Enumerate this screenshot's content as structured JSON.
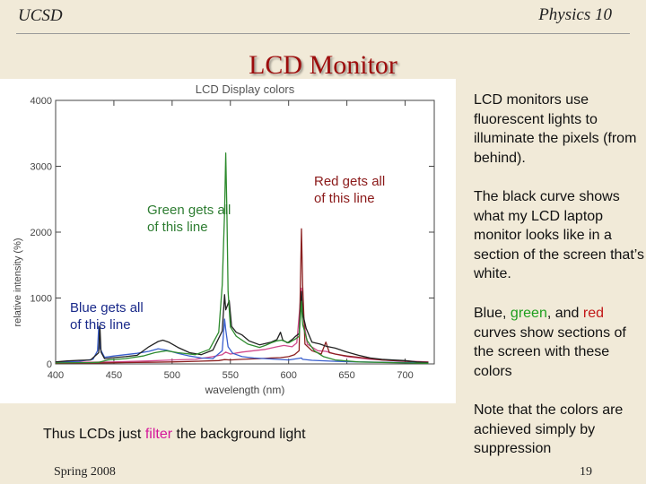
{
  "slide": {
    "header_left": "UCSD",
    "header_right": "Physics 10",
    "title": "LCD Monitor",
    "footer_left": "Spring 2008",
    "page_number": "19"
  },
  "annotations": {
    "green": [
      "Green gets all",
      "of this line"
    ],
    "red": [
      "Red gets all",
      "of this line"
    ],
    "blue": [
      "Blue gets all",
      "of this line"
    ]
  },
  "bullets": {
    "p1": "LCD monitors use fluorescent lights to illuminate the pixels (from behind).",
    "p2": "The black curve shows what my LCD laptop monitor looks like in a section of the screen that’s white.",
    "p3": {
      "w1": "Blue, ",
      "w2": "green",
      "w3": ", and ",
      "w4": "red",
      "w5": " curves show sections of the screen with these colors"
    },
    "p4": "Note that the colors are achieved simply by suppression"
  },
  "bottom": {
    "before": "Thus LCDs just ",
    "highlight": "filter",
    "after": " the background light"
  },
  "chart_data": {
    "type": "line",
    "title": "LCD Display colors",
    "xlabel": "wavelength (nm)",
    "ylabel": "relative intensity (%)",
    "xlim": [
      400,
      725
    ],
    "ylim": [
      0,
      4000
    ],
    "xticks": [
      400,
      450,
      500,
      550,
      600,
      650,
      700
    ],
    "yticks": [
      0,
      1000,
      2000,
      3000,
      4000
    ],
    "series": [
      {
        "color": "#222222",
        "points": [
          [
            400,
            30
          ],
          [
            410,
            45
          ],
          [
            420,
            55
          ],
          [
            430,
            60
          ],
          [
            437,
            170
          ],
          [
            438,
            580
          ],
          [
            439,
            180
          ],
          [
            442,
            80
          ],
          [
            450,
            95
          ],
          [
            460,
            110
          ],
          [
            470,
            130
          ],
          [
            480,
            260
          ],
          [
            488,
            340
          ],
          [
            492,
            360
          ],
          [
            497,
            330
          ],
          [
            505,
            250
          ],
          [
            515,
            170
          ],
          [
            525,
            140
          ],
          [
            535,
            210
          ],
          [
            543,
            500
          ],
          [
            545,
            1050
          ],
          [
            546,
            820
          ],
          [
            549,
            960
          ],
          [
            551,
            570
          ],
          [
            555,
            480
          ],
          [
            560,
            440
          ],
          [
            566,
            350
          ],
          [
            575,
            290
          ],
          [
            578,
            300
          ],
          [
            585,
            330
          ],
          [
            590,
            370
          ],
          [
            593,
            480
          ],
          [
            595,
            360
          ],
          [
            599,
            320
          ],
          [
            603,
            370
          ],
          [
            606,
            420
          ],
          [
            609,
            460
          ],
          [
            611,
            1100
          ],
          [
            612,
            770
          ],
          [
            615,
            540
          ],
          [
            620,
            330
          ],
          [
            627,
            300
          ],
          [
            632,
            270
          ],
          [
            640,
            240
          ],
          [
            650,
            180
          ],
          [
            660,
            130
          ],
          [
            670,
            90
          ],
          [
            680,
            70
          ],
          [
            690,
            60
          ],
          [
            700,
            50
          ],
          [
            710,
            30
          ],
          [
            720,
            20
          ]
        ]
      },
      {
        "color": "#2e8b2e",
        "points": [
          [
            400,
            15
          ],
          [
            430,
            20
          ],
          [
            437,
            25
          ],
          [
            445,
            60
          ],
          [
            460,
            80
          ],
          [
            475,
            120
          ],
          [
            485,
            170
          ],
          [
            495,
            200
          ],
          [
            505,
            170
          ],
          [
            520,
            140
          ],
          [
            532,
            220
          ],
          [
            540,
            480
          ],
          [
            543,
            1200
          ],
          [
            545,
            2300
          ],
          [
            546,
            3200
          ],
          [
            547,
            2300
          ],
          [
            548,
            1100
          ],
          [
            550,
            560
          ],
          [
            555,
            420
          ],
          [
            565,
            300
          ],
          [
            575,
            250
          ],
          [
            580,
            280
          ],
          [
            585,
            320
          ],
          [
            590,
            350
          ],
          [
            594,
            360
          ],
          [
            600,
            320
          ],
          [
            606,
            380
          ],
          [
            609,
            420
          ],
          [
            611,
            950
          ],
          [
            612,
            600
          ],
          [
            616,
            350
          ],
          [
            622,
            200
          ],
          [
            630,
            110
          ],
          [
            640,
            60
          ],
          [
            660,
            30
          ],
          [
            700,
            15
          ],
          [
            720,
            10
          ]
        ]
      },
      {
        "color": "#8b2020",
        "points": [
          [
            400,
            10
          ],
          [
            430,
            12
          ],
          [
            440,
            15
          ],
          [
            460,
            20
          ],
          [
            480,
            25
          ],
          [
            500,
            30
          ],
          [
            520,
            40
          ],
          [
            540,
            50
          ],
          [
            545,
            65
          ],
          [
            550,
            60
          ],
          [
            560,
            70
          ],
          [
            575,
            80
          ],
          [
            585,
            90
          ],
          [
            593,
            95
          ],
          [
            600,
            110
          ],
          [
            605,
            140
          ],
          [
            609,
            200
          ],
          [
            611,
            2050
          ],
          [
            612,
            1200
          ],
          [
            614,
            300
          ],
          [
            620,
            200
          ],
          [
            628,
            150
          ],
          [
            632,
            330
          ],
          [
            635,
            170
          ],
          [
            640,
            150
          ],
          [
            650,
            120
          ],
          [
            660,
            100
          ],
          [
            670,
            80
          ],
          [
            680,
            60
          ],
          [
            690,
            50
          ],
          [
            700,
            40
          ],
          [
            710,
            30
          ],
          [
            720,
            25
          ]
        ]
      },
      {
        "color": "#3a5fcd",
        "points": [
          [
            400,
            25
          ],
          [
            420,
            40
          ],
          [
            432,
            70
          ],
          [
            436,
            200
          ],
          [
            437,
            560
          ],
          [
            438,
            240
          ],
          [
            442,
            100
          ],
          [
            450,
            120
          ],
          [
            460,
            140
          ],
          [
            470,
            160
          ],
          [
            480,
            190
          ],
          [
            488,
            230
          ],
          [
            495,
            210
          ],
          [
            505,
            160
          ],
          [
            515,
            120
          ],
          [
            525,
            90
          ],
          [
            535,
            80
          ],
          [
            543,
            200
          ],
          [
            545,
            680
          ],
          [
            546,
            520
          ],
          [
            548,
            260
          ],
          [
            552,
            160
          ],
          [
            560,
            110
          ],
          [
            570,
            90
          ],
          [
            580,
            80
          ],
          [
            590,
            70
          ],
          [
            600,
            60
          ],
          [
            611,
            90
          ],
          [
            612,
            70
          ],
          [
            620,
            55
          ],
          [
            640,
            40
          ],
          [
            660,
            30
          ],
          [
            700,
            20
          ],
          [
            720,
            15
          ]
        ]
      },
      {
        "color": "#d04a8c",
        "points": [
          [
            400,
            20
          ],
          [
            450,
            30
          ],
          [
            480,
            45
          ],
          [
            500,
            60
          ],
          [
            520,
            70
          ],
          [
            535,
            110
          ],
          [
            543,
            140
          ],
          [
            546,
            180
          ],
          [
            550,
            150
          ],
          [
            560,
            180
          ],
          [
            570,
            200
          ],
          [
            580,
            220
          ],
          [
            590,
            260
          ],
          [
            596,
            280
          ],
          [
            603,
            260
          ],
          [
            607,
            320
          ],
          [
            611,
            1150
          ],
          [
            612,
            780
          ],
          [
            616,
            300
          ],
          [
            625,
            200
          ],
          [
            632,
            190
          ],
          [
            640,
            150
          ],
          [
            650,
            110
          ],
          [
            660,
            90
          ],
          [
            670,
            70
          ],
          [
            690,
            50
          ],
          [
            720,
            30
          ]
        ]
      }
    ]
  }
}
